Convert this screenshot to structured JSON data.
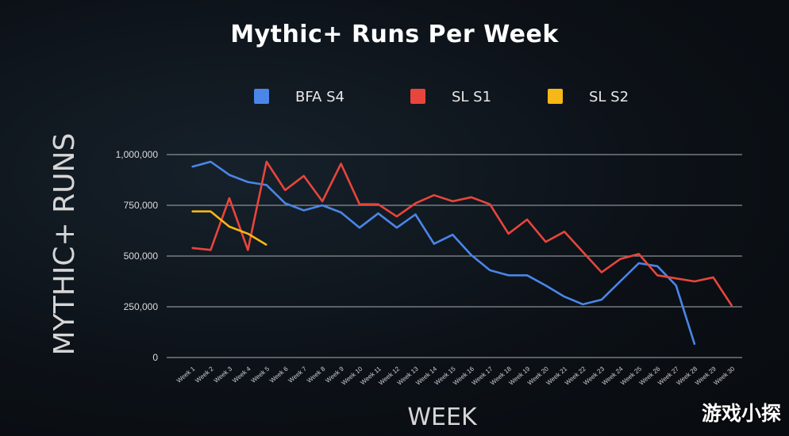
{
  "watermark": "游戏小探",
  "chart_data": {
    "type": "line",
    "title": "Mythic+ Runs Per Week",
    "xlabel": "WEEK",
    "ylabel": "MYTHIC+ RUNS",
    "ylim": [
      0,
      1000000
    ],
    "yticks": [
      0,
      250000,
      500000,
      750000,
      1000000
    ],
    "ytick_labels": [
      "0",
      "250,000",
      "500,000",
      "750,000",
      "1,000,000"
    ],
    "grid": true,
    "legend_position": "top",
    "categories": [
      "Week 1",
      "Week 2",
      "Week 3",
      "Week 4",
      "Week 5",
      "Week 6",
      "Week 7",
      "Week 8",
      "Week 9",
      "Week 10",
      "Week 11",
      "Week 12",
      "Week 13",
      "Week 14",
      "Week 15",
      "Week 16",
      "Week 17",
      "Week 18",
      "Week 19",
      "Week 20",
      "Week 21",
      "Week 22",
      "Week 23",
      "Week 24",
      "Week 25",
      "Week 26",
      "Week 27",
      "Week 28",
      "Week 29",
      "Week 30"
    ],
    "series": [
      {
        "name": "BFA S4",
        "color": "#4a86e8",
        "values": [
          940000,
          965000,
          900000,
          865000,
          850000,
          760000,
          725000,
          750000,
          715000,
          640000,
          710000,
          640000,
          705000,
          560000,
          605000,
          505000,
          430000,
          405000,
          405000,
          355000,
          300000,
          262000,
          285000,
          375000,
          465000,
          450000,
          355000,
          65000,
          null,
          null
        ]
      },
      {
        "name": "SL S1",
        "color": "#e8453c",
        "values": [
          540000,
          530000,
          785000,
          530000,
          965000,
          825000,
          895000,
          770000,
          955000,
          755000,
          755000,
          695000,
          760000,
          800000,
          770000,
          790000,
          755000,
          610000,
          680000,
          570000,
          620000,
          520000,
          420000,
          485000,
          510000,
          405000,
          390000,
          375000,
          395000,
          255000
        ]
      },
      {
        "name": "SL S2",
        "color": "#f6b817",
        "values": [
          720000,
          720000,
          645000,
          610000,
          555000,
          null,
          null,
          null,
          null,
          null,
          null,
          null,
          null,
          null,
          null,
          null,
          null,
          null,
          null,
          null,
          null,
          null,
          null,
          null,
          null,
          null,
          null,
          null,
          null,
          null
        ]
      }
    ]
  }
}
